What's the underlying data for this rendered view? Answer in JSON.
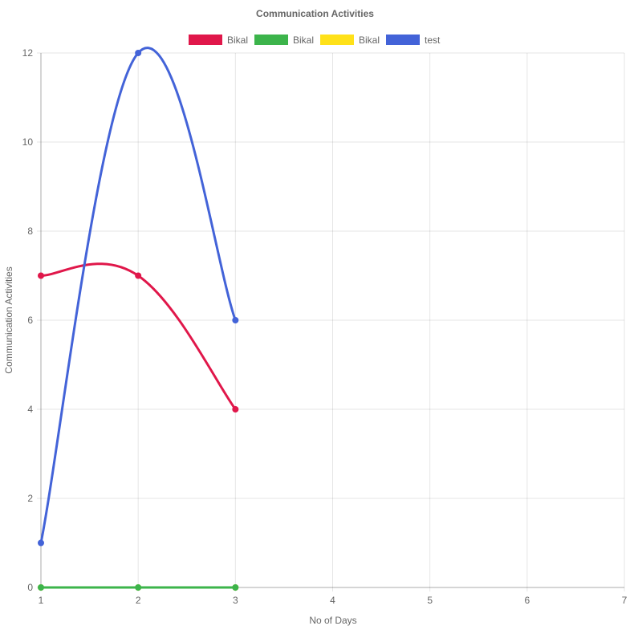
{
  "chart_data": {
    "type": "line",
    "title": "Communication Activities",
    "xlabel": "No of Days",
    "ylabel": "Communication Activities",
    "x_ticks": [
      "1",
      "2",
      "3",
      "4",
      "5",
      "6",
      "7"
    ],
    "y_ticks": [
      "0",
      "2",
      "4",
      "6",
      "8",
      "10",
      "12"
    ],
    "xlim": [
      1,
      7
    ],
    "ylim": [
      0,
      12
    ],
    "grid": true,
    "legend_position": "top",
    "series": [
      {
        "name": "Bikal",
        "color": "#e0174a",
        "x": [
          1,
          2,
          3
        ],
        "y": [
          7,
          7,
          4
        ]
      },
      {
        "name": "Bikal",
        "color": "#3cb44b",
        "x": [
          1,
          2,
          3
        ],
        "y": [
          0,
          0,
          0
        ]
      },
      {
        "name": "Bikal",
        "color": "#ffe119",
        "x": [
          1,
          2,
          3
        ],
        "y": [
          0,
          0,
          0
        ]
      },
      {
        "name": "test",
        "color": "#4363d8",
        "x": [
          1,
          2,
          3
        ],
        "y": [
          1,
          12,
          6
        ]
      }
    ]
  }
}
